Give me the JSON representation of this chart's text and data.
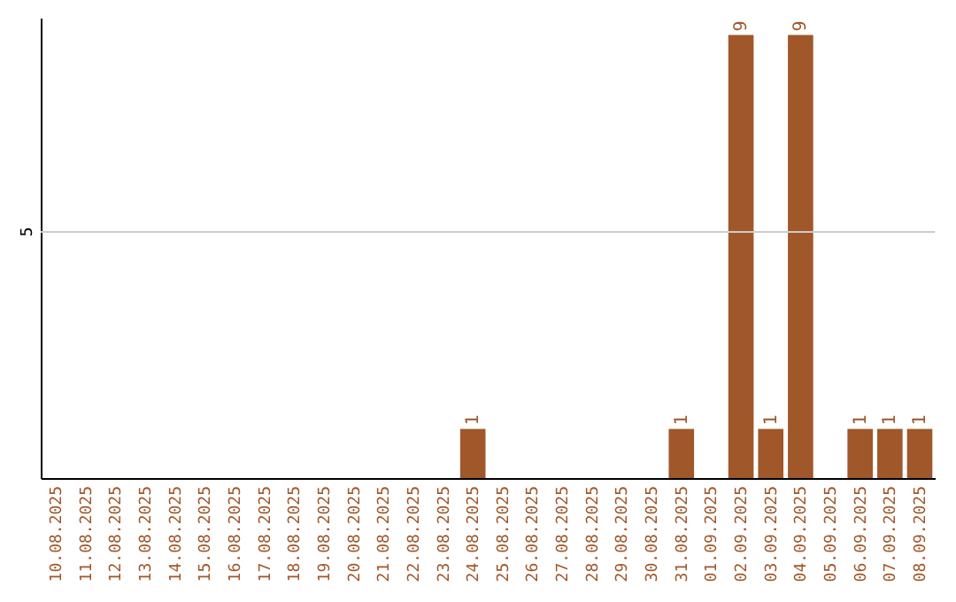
{
  "chart_data": {
    "type": "bar",
    "ylim": [
      0,
      9.35
    ],
    "categories": [
      "10.08.2025",
      "11.08.2025",
      "12.08.2025",
      "13.08.2025",
      "14.08.2025",
      "15.08.2025",
      "16.08.2025",
      "17.08.2025",
      "18.08.2025",
      "19.08.2025",
      "20.08.2025",
      "21.08.2025",
      "22.08.2025",
      "23.08.2025",
      "24.08.2025",
      "25.08.2025",
      "26.08.2025",
      "27.08.2025",
      "28.08.2025",
      "29.08.2025",
      "30.08.2025",
      "31.08.2025",
      "01.09.2025",
      "02.09.2025",
      "03.09.2025",
      "04.09.2025",
      "05.09.2025",
      "06.09.2025",
      "07.09.2025",
      "08.09.2025"
    ],
    "values": [
      null,
      null,
      null,
      null,
      null,
      null,
      null,
      null,
      null,
      null,
      null,
      null,
      null,
      null,
      1,
      null,
      null,
      null,
      null,
      null,
      null,
      1,
      null,
      9,
      1,
      9,
      null,
      1,
      1,
      1
    ],
    "data_labels": true,
    "color": "#a0572a",
    "ref_lines": [
      {
        "axis": "y",
        "value": 5,
        "label": "5",
        "color": "#cccccc"
      }
    ]
  }
}
